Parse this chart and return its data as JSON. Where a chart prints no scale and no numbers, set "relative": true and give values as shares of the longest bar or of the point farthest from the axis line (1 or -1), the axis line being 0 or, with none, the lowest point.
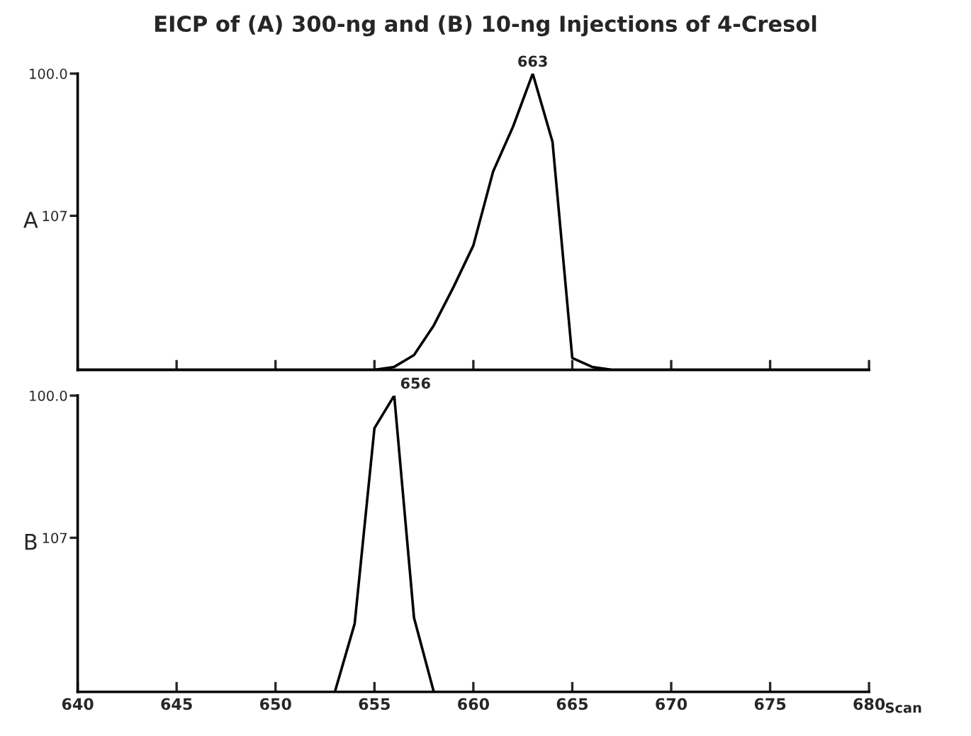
{
  "chart_data": [
    {
      "type": "line",
      "title": "EICP of (A) 300-ng and (B) 10-ng Injections of 4-Cresol",
      "relative": true,
      "xlim": [
        640,
        680
      ],
      "xticks": [
        640,
        645,
        650,
        655,
        660,
        665,
        670,
        675,
        680
      ],
      "tick_labels": false,
      "series": [
        {
          "color": "#000000",
          "x": [
            640,
            655,
            656,
            657,
            658,
            659,
            660,
            661,
            662,
            663,
            664,
            665,
            666,
            667,
            680
          ],
          "values": [
            0,
            0,
            0.01,
            0.05,
            0.15,
            0.28,
            0.42,
            0.67,
            0.82,
            1,
            0.77,
            0.04,
            0.01,
            0,
            0
          ]
        }
      ],
      "annotations": [
        "A",
        "100.0",
        "107",
        {
          "text": "663",
          "x": 663,
          "y": 1
        }
      ]
    },
    {
      "type": "line",
      "relative": true,
      "xlabel": "Scan",
      "xlim": [
        640,
        680
      ],
      "xticks": [
        640,
        645,
        650,
        655,
        660,
        665,
        670,
        675,
        680
      ],
      "tick_labels": "x",
      "series": [
        {
          "color": "#000000",
          "x": [
            640,
            653,
            654,
            655,
            656,
            657,
            658,
            680
          ],
          "values": [
            0,
            0,
            0.23,
            0.89,
            1,
            0.25,
            0,
            0
          ]
        }
      ],
      "annotations": [
        "B",
        "100.0",
        "107",
        {
          "text": "656",
          "x": 656,
          "y": 1
        }
      ]
    }
  ]
}
